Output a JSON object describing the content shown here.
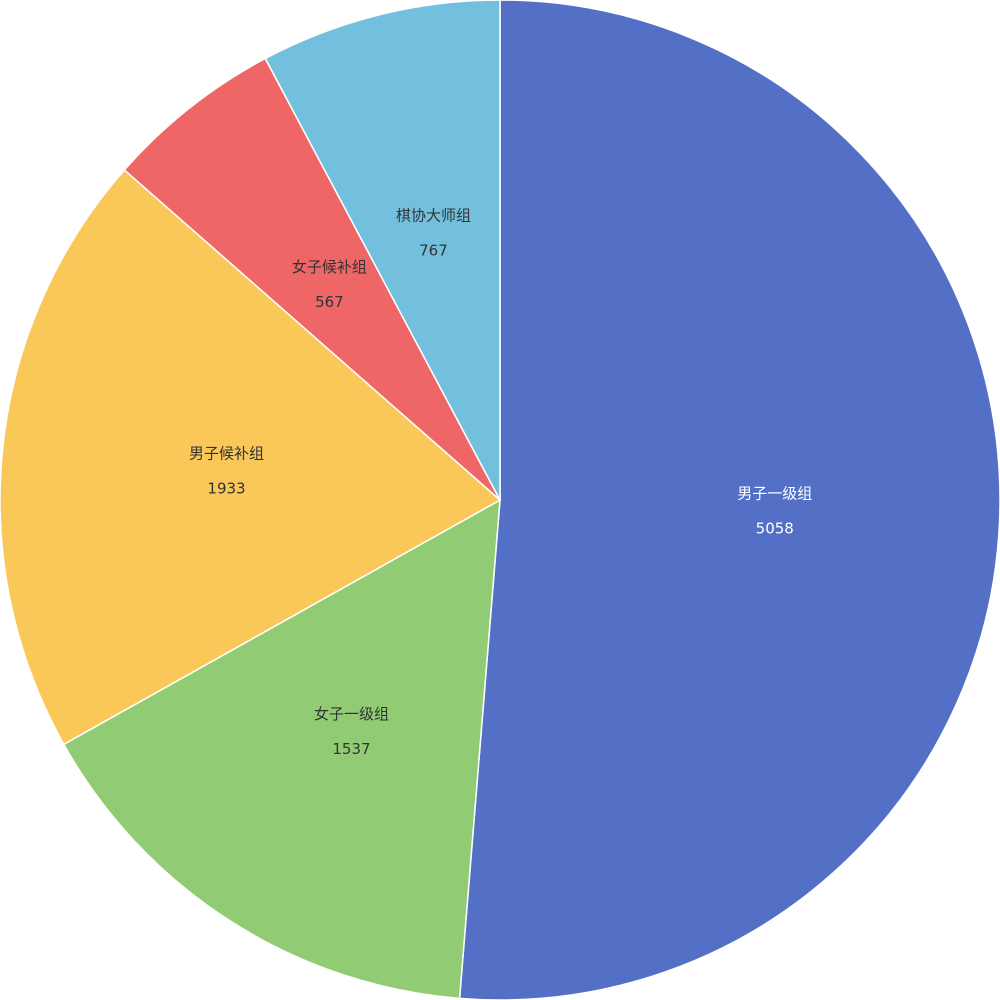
{
  "chart_data": {
    "type": "pie",
    "start_angle_deg": 90,
    "direction": "clockwise",
    "slices": [
      {
        "name": "男子一级组",
        "value": 5058,
        "color": "#5470c6",
        "label_color": "#ffffff"
      },
      {
        "name": "女子一级组",
        "value": 1537,
        "color": "#91cc75",
        "label_color": "#333333"
      },
      {
        "name": "男子候补组",
        "value": 1933,
        "color": "#fac858",
        "label_color": "#333333"
      },
      {
        "name": "女子候补组",
        "value": 567,
        "color": "#ee6666",
        "label_color": "#333333"
      },
      {
        "name": "棋协大师组",
        "value": 767,
        "color": "#73c0de",
        "label_color": "#333333"
      }
    ]
  }
}
